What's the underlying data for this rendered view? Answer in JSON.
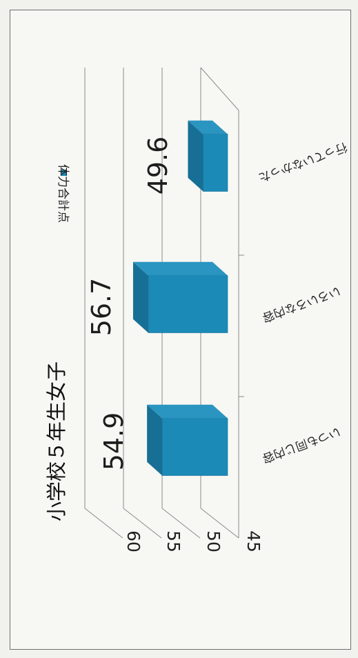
{
  "chart_data": {
    "type": "bar",
    "title": "小学校５年生女子",
    "categories": [
      "いつも同じ内容",
      "いろいろな内容",
      "行っていなかった"
    ],
    "series": [
      {
        "name": "体力合計点",
        "values": [
          54.9,
          56.7,
          49.6
        ],
        "labels": [
          "54.9",
          "56.7",
          "49.6"
        ]
      }
    ],
    "yticks": [
      "45",
      "50",
      "55",
      "60"
    ],
    "ylim": [
      45,
      60
    ],
    "grid": true,
    "legend": "top-right",
    "bar_color": "#1b8ab7",
    "bar_top_color": "#186f95",
    "bar_side_color": "#2a95c0"
  }
}
